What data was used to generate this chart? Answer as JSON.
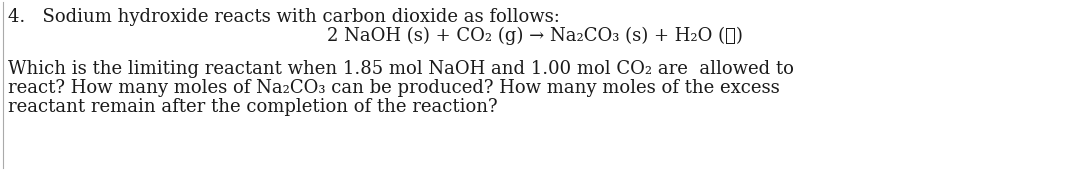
{
  "background_color": "#ffffff",
  "border_color": "#000000",
  "line1": "4.   Sodium hydroxide reacts with carbon dioxide as follows:",
  "line2": "2 NaOH (s) + CO₂ (g) → Na₂CO₃ (s) + H₂O (ℓ)",
  "line3": "Which is the limiting reactant when 1.85 mol NaOH and 1.00 mol CO₂ are  allowed to",
  "line4": "react? How many moles of Na₂CO₃ can be produced? How many moles of the excess",
  "line5": "reactant remain after the completion of the reaction?",
  "font_size": 13.0,
  "text_color": "#1a1a1a",
  "font_family": "DejaVu Serif",
  "figwidth": 10.69,
  "figheight": 1.7,
  "dpi": 100
}
